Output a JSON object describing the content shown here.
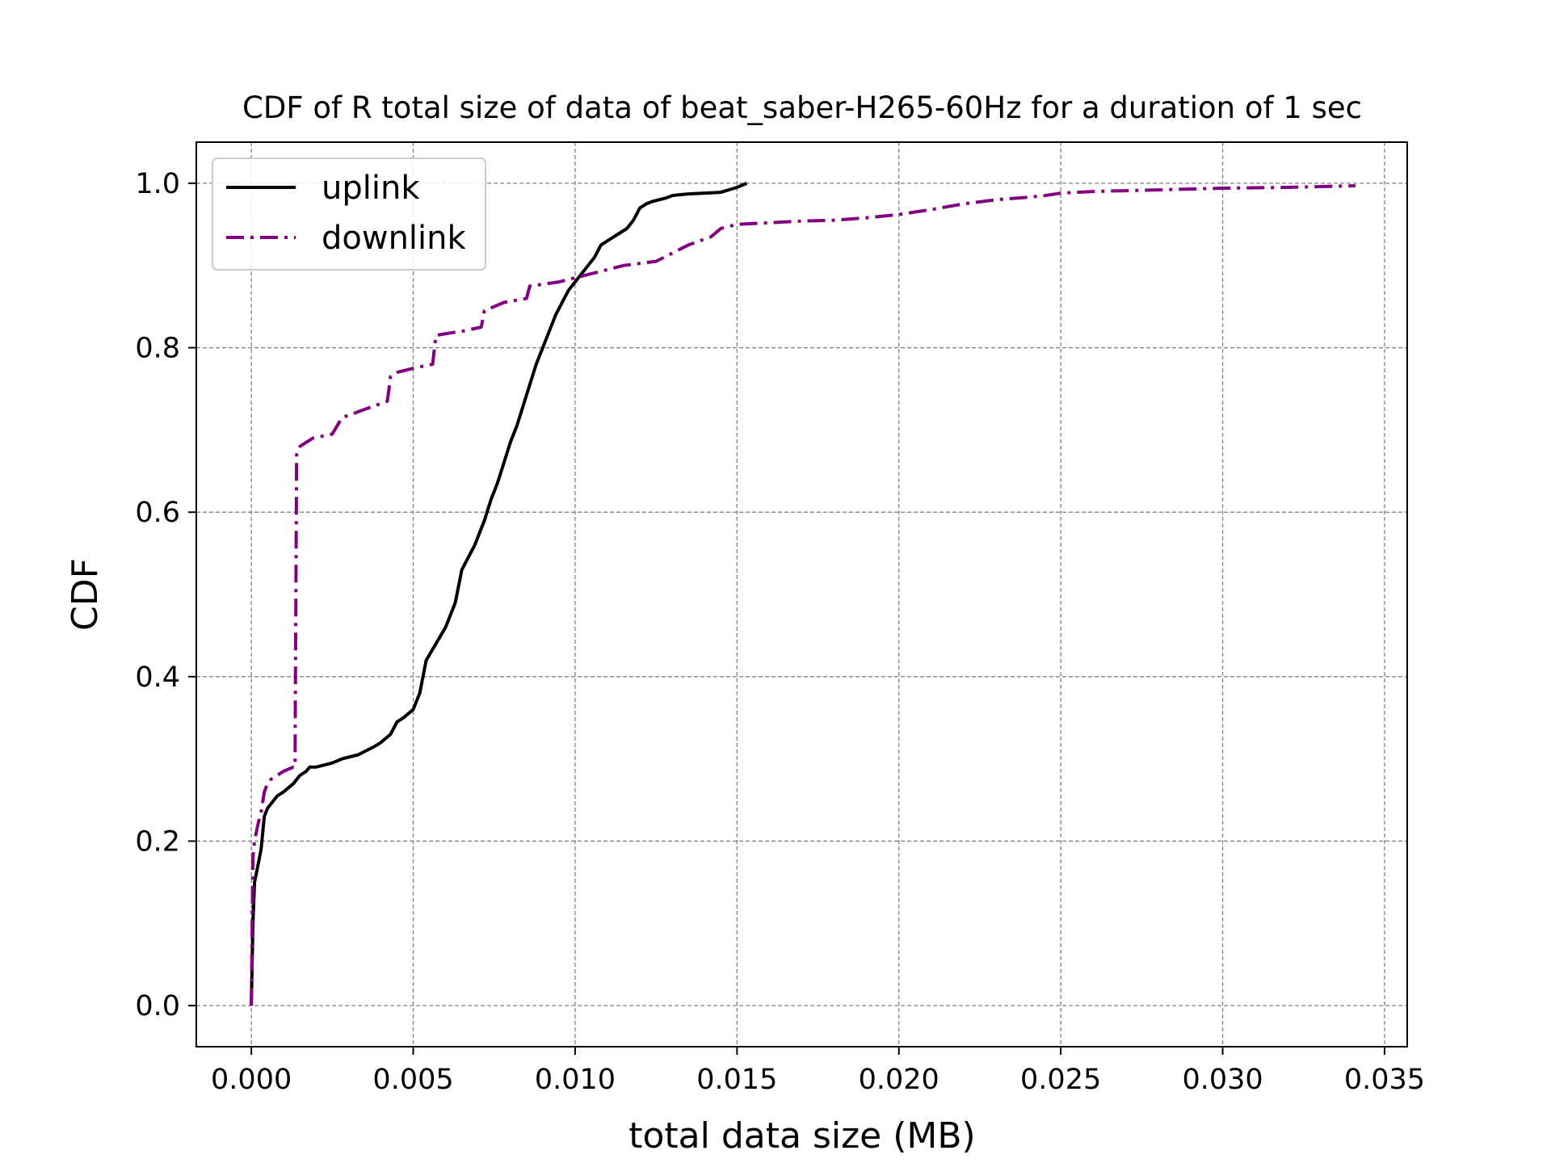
{
  "chart_data": {
    "type": "line",
    "title": "CDF of R total size of data of beat_saber-H265-60Hz for a duration of 1 sec",
    "xlabel": "total data size (MB)",
    "ylabel": "CDF",
    "xlim": [
      -0.0017,
      0.0357
    ],
    "ylim": [
      -0.05,
      1.05
    ],
    "xticks": [
      0.0,
      0.005,
      0.01,
      0.015,
      0.02,
      0.025,
      0.03,
      0.035
    ],
    "xtick_labels": [
      "0.000",
      "0.005",
      "0.010",
      "0.015",
      "0.020",
      "0.025",
      "0.030",
      "0.035"
    ],
    "yticks": [
      0.0,
      0.2,
      0.4,
      0.6,
      0.8,
      1.0
    ],
    "ytick_labels": [
      "0.0",
      "0.2",
      "0.4",
      "0.6",
      "0.8",
      "1.0"
    ],
    "grid": true,
    "legend_position": "top-left",
    "series": [
      {
        "name": "uplink",
        "color": "#000000",
        "style": "solid",
        "x": [
          0.0,
          5e-05,
          0.0001,
          0.0002,
          0.0003,
          0.0004,
          0.0005,
          0.0006,
          0.0008,
          0.001,
          0.0013,
          0.0015,
          0.0017,
          0.0018,
          0.002,
          0.0025,
          0.0028,
          0.0033,
          0.0038,
          0.004,
          0.0043,
          0.0045,
          0.0047,
          0.005,
          0.0052,
          0.0054,
          0.0057,
          0.006,
          0.0063,
          0.0065,
          0.0067,
          0.0069,
          0.0072,
          0.0074,
          0.0076,
          0.0078,
          0.008,
          0.0082,
          0.0084,
          0.0086,
          0.0088,
          0.009,
          0.0092,
          0.0094,
          0.0096,
          0.0098,
          0.01,
          0.0102,
          0.0104,
          0.0106,
          0.0108,
          0.011,
          0.0112,
          0.0114,
          0.0116,
          0.0118,
          0.012,
          0.0122,
          0.0124,
          0.0126,
          0.0128,
          0.013,
          0.0132,
          0.0135,
          0.014,
          0.0145,
          0.015,
          0.0153
        ],
        "y": [
          0.0,
          0.1,
          0.15,
          0.17,
          0.19,
          0.23,
          0.24,
          0.245,
          0.255,
          0.26,
          0.27,
          0.28,
          0.285,
          0.29,
          0.29,
          0.295,
          0.3,
          0.305,
          0.315,
          0.32,
          0.33,
          0.345,
          0.35,
          0.36,
          0.38,
          0.42,
          0.44,
          0.46,
          0.49,
          0.53,
          0.545,
          0.56,
          0.59,
          0.615,
          0.635,
          0.66,
          0.685,
          0.705,
          0.73,
          0.755,
          0.78,
          0.8,
          0.82,
          0.84,
          0.855,
          0.87,
          0.88,
          0.89,
          0.9,
          0.91,
          0.925,
          0.93,
          0.935,
          0.94,
          0.945,
          0.955,
          0.97,
          0.975,
          0.978,
          0.98,
          0.982,
          0.985,
          0.986,
          0.987,
          0.988,
          0.989,
          0.995,
          1.0
        ]
      },
      {
        "name": "downlink",
        "color": "#800080",
        "style": "dashdot",
        "x": [
          0.0,
          5e-05,
          0.0001,
          0.0002,
          0.0003,
          0.0004,
          0.0005,
          0.0006,
          0.0008,
          0.001,
          0.0013,
          0.00135,
          0.0014,
          0.0015,
          0.0017,
          0.0019,
          0.0025,
          0.0028,
          0.0035,
          0.0042,
          0.0043,
          0.0045,
          0.005,
          0.0056,
          0.0057,
          0.006,
          0.0065,
          0.0071,
          0.0072,
          0.0078,
          0.0085,
          0.0086,
          0.0095,
          0.01,
          0.0108,
          0.0115,
          0.0125,
          0.013,
          0.0135,
          0.0142,
          0.0145,
          0.015,
          0.016,
          0.017,
          0.018,
          0.019,
          0.0195,
          0.02,
          0.0205,
          0.021,
          0.022,
          0.023,
          0.024,
          0.0245,
          0.025,
          0.026,
          0.027,
          0.028,
          0.03,
          0.032,
          0.0341
        ],
        "y": [
          0.0,
          0.18,
          0.2,
          0.22,
          0.235,
          0.26,
          0.27,
          0.275,
          0.28,
          0.285,
          0.29,
          0.29,
          0.67,
          0.68,
          0.685,
          0.69,
          0.695,
          0.715,
          0.725,
          0.735,
          0.765,
          0.77,
          0.775,
          0.78,
          0.815,
          0.817,
          0.82,
          0.825,
          0.845,
          0.855,
          0.86,
          0.875,
          0.88,
          0.885,
          0.893,
          0.9,
          0.905,
          0.915,
          0.925,
          0.935,
          0.945,
          0.95,
          0.952,
          0.954,
          0.955,
          0.958,
          0.96,
          0.962,
          0.965,
          0.968,
          0.975,
          0.98,
          0.983,
          0.985,
          0.988,
          0.99,
          0.991,
          0.992,
          0.994,
          0.995,
          0.997
        ]
      }
    ]
  }
}
